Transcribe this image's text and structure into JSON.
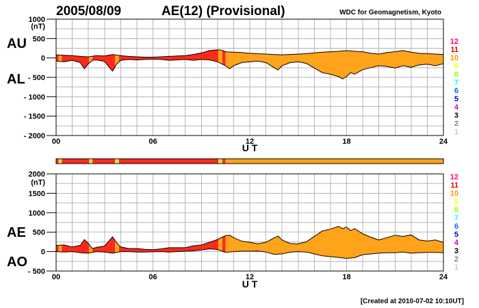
{
  "header": {
    "date": "2005/08/09",
    "title": "AE(12) (Provisional)",
    "source": "WDC for Geomagnetism, Kyoto"
  },
  "footer": {
    "created": "[Created at 2010-07-02 10:10UT]"
  },
  "colors": {
    "grid": "#b4b4b4",
    "level_11": "#ff2a1a",
    "level_10": "#ffa31a",
    "status_bar_yellow": "#ffe040"
  },
  "legend": [
    {
      "label": "12",
      "color": "#ff0080"
    },
    {
      "label": "11",
      "color": "#e00000"
    },
    {
      "label": "10",
      "color": "#ff9900"
    },
    {
      "label": "9",
      "color": "#ffff00"
    },
    {
      "label": "8",
      "color": "#99ff00"
    },
    {
      "label": "7",
      "color": "#00ffff"
    },
    {
      "label": "6",
      "color": "#0066ff"
    },
    {
      "label": "5",
      "color": "#0000cc"
    },
    {
      "label": "4",
      "color": "#cc00cc"
    },
    {
      "label": "3",
      "color": "#000000"
    },
    {
      "label": "2",
      "color": "#808080"
    },
    {
      "label": "1",
      "color": "#c8c8c8"
    }
  ],
  "station_count_bar": {
    "segments": [
      {
        "from": 0.0,
        "to": 0.15,
        "level": "11"
      },
      {
        "from": 0.15,
        "to": 0.35,
        "level": "10"
      },
      {
        "from": 0.35,
        "to": 2.05,
        "level": "11"
      },
      {
        "from": 2.05,
        "to": 2.25,
        "level": "10"
      },
      {
        "from": 2.25,
        "to": 3.65,
        "level": "11"
      },
      {
        "from": 3.65,
        "to": 3.9,
        "level": "10"
      },
      {
        "from": 3.9,
        "to": 10.05,
        "level": "11"
      },
      {
        "from": 10.05,
        "to": 10.3,
        "level": "10"
      },
      {
        "from": 10.3,
        "to": 10.5,
        "level": "11"
      },
      {
        "from": 10.5,
        "to": 24.0,
        "level": "10"
      }
    ]
  },
  "chart_data": [
    {
      "type": "area",
      "name": "AU/AL",
      "side_labels": {
        "upper": "AU",
        "lower": "AL"
      },
      "ylabel": "(nT)",
      "xlabel": "U T",
      "xlim": [
        0,
        24
      ],
      "ylim": [
        -2000,
        1000
      ],
      "x_ticks": [
        "00",
        "06",
        "12",
        "18",
        "24"
      ],
      "y_ticks": [
        "1000",
        "500",
        "0",
        "- 500",
        "- 1000",
        "- 1500",
        "- 2000"
      ],
      "grid": true,
      "series": [
        {
          "key": "AU",
          "x": [
            0,
            0.5,
            1,
            1.5,
            2,
            2.5,
            3,
            3.5,
            4,
            4.5,
            5,
            5.5,
            6,
            6.5,
            7,
            7.5,
            8,
            8.5,
            9,
            9.5,
            9.75,
            10,
            10.25,
            10.5,
            11,
            11.5,
            12,
            12.5,
            13,
            13.5,
            14,
            14.5,
            15,
            15.5,
            16,
            16.5,
            17,
            17.5,
            18,
            18.5,
            19,
            19.5,
            20,
            20.5,
            21,
            21.5,
            22,
            22.5,
            23,
            23.5,
            24
          ],
          "values": [
            80,
            70,
            60,
            40,
            30,
            60,
            50,
            90,
            60,
            40,
            30,
            20,
            20,
            30,
            40,
            50,
            60,
            90,
            130,
            190,
            200,
            210,
            200,
            160,
            150,
            140,
            120,
            110,
            100,
            90,
            80,
            90,
            100,
            110,
            130,
            150,
            160,
            170,
            190,
            170,
            160,
            120,
            100,
            140,
            160,
            190,
            150,
            120,
            110,
            100,
            90
          ]
        },
        {
          "key": "AL",
          "x": [
            0,
            0.5,
            1,
            1.5,
            1.75,
            2,
            2.25,
            2.5,
            3,
            3.25,
            3.5,
            3.75,
            4,
            4.5,
            5,
            5.5,
            6,
            6.5,
            7,
            7.5,
            8,
            8.5,
            9,
            9.5,
            10,
            10.5,
            10.75,
            11,
            11.5,
            12,
            12.5,
            13,
            13.5,
            13.75,
            14,
            14.5,
            15,
            15.5,
            16,
            16.5,
            17,
            17.5,
            17.75,
            18,
            18.25,
            18.5,
            19,
            19.5,
            20,
            20.5,
            21,
            21.5,
            22,
            22.5,
            23,
            23.5,
            24
          ],
          "values": [
            -80,
            -100,
            -60,
            -120,
            -280,
            -150,
            -60,
            -50,
            -90,
            -220,
            -340,
            -160,
            -60,
            -40,
            -50,
            -40,
            -30,
            -40,
            -60,
            -50,
            -40,
            -60,
            -40,
            -50,
            -100,
            -200,
            -280,
            -200,
            -120,
            -100,
            -80,
            -120,
            -250,
            -310,
            -200,
            -120,
            -100,
            -140,
            -260,
            -380,
            -420,
            -480,
            -540,
            -480,
            -380,
            -420,
            -300,
            -250,
            -200,
            -220,
            -260,
            -200,
            -240,
            -180,
            -160,
            -200,
            -150
          ]
        }
      ]
    },
    {
      "type": "area",
      "name": "AE/AO",
      "side_labels": {
        "upper": "AE",
        "lower": "AO"
      },
      "ylabel": "(nT)",
      "xlabel": "U T",
      "xlim": [
        0,
        24
      ],
      "ylim": [
        -500,
        2000
      ],
      "x_ticks": [
        "00",
        "06",
        "12",
        "18",
        "24"
      ],
      "y_ticks": [
        "2000",
        "1500",
        "1000",
        "500",
        "0",
        "- 500"
      ],
      "grid": true,
      "series": [
        {
          "key": "AE",
          "x": [
            0,
            0.5,
            1,
            1.5,
            1.75,
            2,
            2.25,
            2.5,
            3,
            3.25,
            3.5,
            3.75,
            4,
            4.5,
            5,
            5.5,
            6,
            6.5,
            7,
            7.5,
            8,
            8.5,
            9,
            9.5,
            10,
            10.5,
            10.75,
            11,
            11.5,
            12,
            12.5,
            13,
            13.5,
            13.75,
            14,
            14.5,
            15,
            15.5,
            16,
            16.5,
            17,
            17.5,
            17.75,
            18,
            18.25,
            18.5,
            19,
            19.5,
            20,
            20.5,
            21,
            21.5,
            22,
            22.5,
            23,
            23.5,
            24
          ],
          "values": [
            160,
            170,
            120,
            160,
            310,
            210,
            80,
            110,
            140,
            260,
            380,
            230,
            120,
            80,
            80,
            60,
            50,
            70,
            100,
            100,
            100,
            150,
            170,
            240,
            310,
            410,
            420,
            360,
            270,
            240,
            200,
            240,
            350,
            400,
            300,
            210,
            200,
            250,
            390,
            530,
            580,
            650,
            590,
            630,
            540,
            590,
            460,
            370,
            300,
            360,
            420,
            390,
            430,
            300,
            270,
            300,
            240
          ]
        },
        {
          "key": "AO",
          "x": [
            0,
            0.5,
            1,
            1.5,
            2,
            2.5,
            3,
            3.5,
            4,
            4.5,
            5,
            5.5,
            6,
            6.5,
            7,
            7.5,
            8,
            8.5,
            9,
            9.5,
            10,
            10.5,
            11,
            11.5,
            12,
            12.5,
            13,
            13.5,
            14,
            14.5,
            15,
            15.5,
            16,
            16.5,
            17,
            17.5,
            18,
            18.5,
            19,
            19.5,
            20,
            20.5,
            21,
            21.5,
            22,
            22.5,
            23,
            23.5,
            24
          ],
          "values": [
            0,
            -10,
            0,
            -30,
            -40,
            0,
            -10,
            -40,
            0,
            0,
            -10,
            -10,
            -5,
            0,
            -10,
            0,
            10,
            20,
            40,
            70,
            55,
            -20,
            0,
            10,
            10,
            15,
            -10,
            -70,
            -60,
            -15,
            0,
            -10,
            -60,
            -110,
            -130,
            -150,
            -175,
            -155,
            -80,
            -60,
            -40,
            -30,
            -30,
            -10,
            -40,
            -30,
            -20,
            -20,
            -30
          ]
        }
      ]
    }
  ]
}
